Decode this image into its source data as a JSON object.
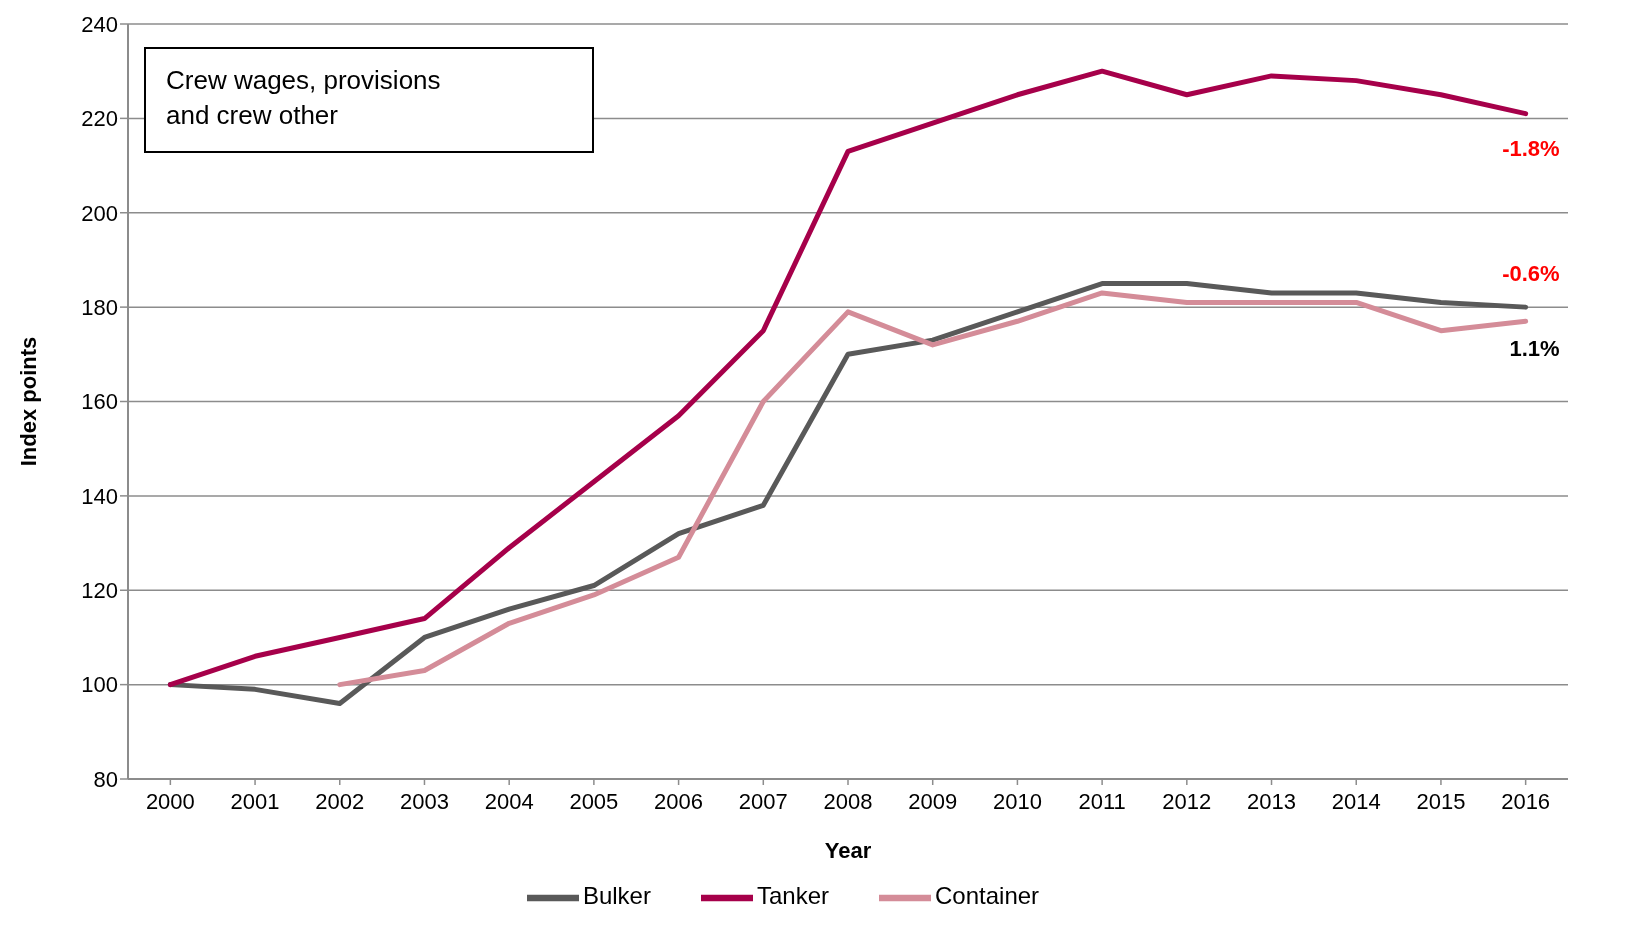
{
  "chart_data": {
    "type": "line",
    "title": "Crew wages, provisions and crew other",
    "xlabel": "Year",
    "ylabel": "Index points",
    "categories": [
      "2000",
      "2001",
      "2002",
      "2003",
      "2004",
      "2005",
      "2006",
      "2007",
      "2008",
      "2009",
      "2010",
      "2011",
      "2012",
      "2013",
      "2014",
      "2015",
      "2016"
    ],
    "series": [
      {
        "name": "Bulker",
        "color": "#595959",
        "values": [
          100,
          99,
          96,
          110,
          116,
          121,
          132,
          138,
          170,
          173,
          179,
          185,
          185,
          183,
          183,
          181,
          180
        ]
      },
      {
        "name": "Tanker",
        "color": "#a6004a",
        "values": [
          100,
          106,
          110,
          114,
          129,
          143,
          157,
          175,
          213,
          219,
          225,
          230,
          225,
          229,
          228,
          225,
          221
        ]
      },
      {
        "name": "Container",
        "color": "#d48c98",
        "values": [
          null,
          null,
          100,
          103,
          113,
          119,
          127,
          160,
          179,
          172,
          177,
          183,
          181,
          181,
          181,
          175,
          177
        ]
      }
    ],
    "ylim": [
      80,
      240
    ],
    "yticks": [
      80,
      100,
      120,
      140,
      160,
      180,
      200,
      220,
      240
    ],
    "annotations": [
      "-1.8%",
      "-0.6%",
      "1.1%"
    ],
    "grid": "y",
    "legend": "bottom"
  }
}
